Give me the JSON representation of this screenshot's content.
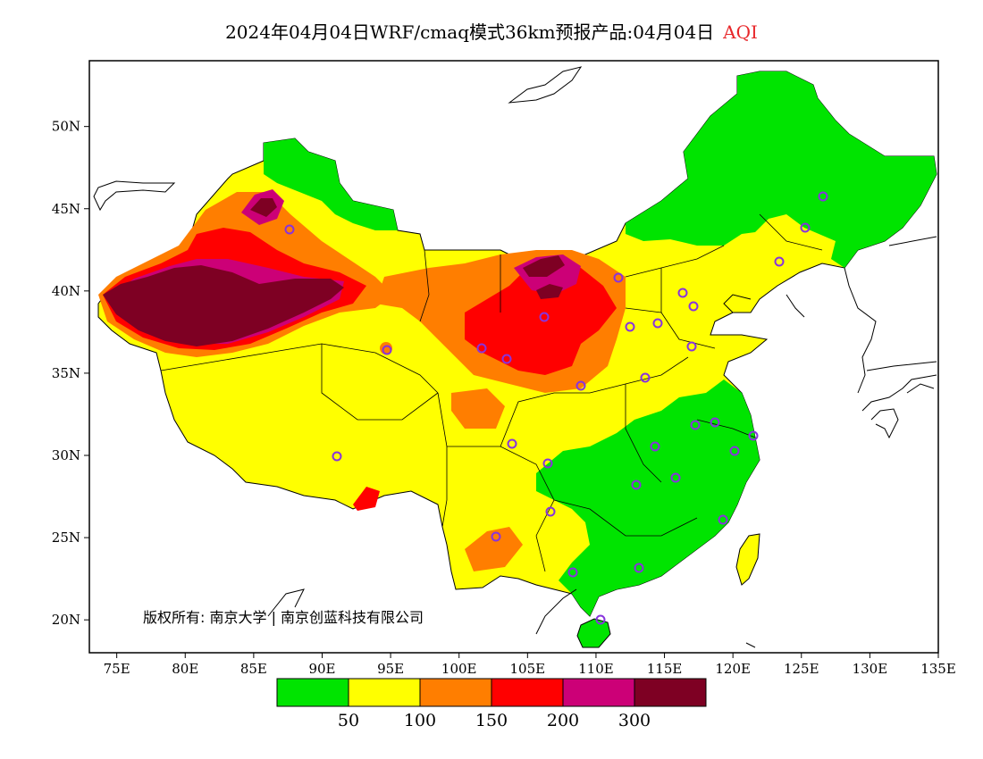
{
  "title": {
    "main": "2024年04月04日WRF/cmaq模式36km预报产品:04月04日",
    "variable": "AQI"
  },
  "map": {
    "lon_range": [
      73,
      135
    ],
    "lat_range": [
      18,
      54
    ],
    "lat_ticks": [
      {
        "value": 50,
        "label": "50N"
      },
      {
        "value": 45,
        "label": "45N"
      },
      {
        "value": 40,
        "label": "40N"
      },
      {
        "value": 35,
        "label": "35N"
      },
      {
        "value": 30,
        "label": "30N"
      },
      {
        "value": 25,
        "label": "25N"
      },
      {
        "value": 20,
        "label": "20N"
      }
    ],
    "lon_ticks": [
      {
        "value": 75,
        "label": "75E"
      },
      {
        "value": 80,
        "label": "80E"
      },
      {
        "value": 85,
        "label": "85E"
      },
      {
        "value": 90,
        "label": "90E"
      },
      {
        "value": 95,
        "label": "95E"
      },
      {
        "value": 100,
        "label": "100E"
      },
      {
        "value": 105,
        "label": "105E"
      },
      {
        "value": 110,
        "label": "110E"
      },
      {
        "value": 115,
        "label": "115E"
      },
      {
        "value": 120,
        "label": "120E"
      },
      {
        "value": 125,
        "label": "125E"
      },
      {
        "value": 130,
        "label": "130E"
      },
      {
        "value": 135,
        "label": "135E"
      }
    ],
    "copyright": "版权所有: 南京大学 | 南京创蓝科技有限公司"
  },
  "legend": {
    "colors": [
      "#00e400",
      "#ffff00",
      "#ff7e00",
      "#ff0000",
      "#cc0077",
      "#7e0023"
    ],
    "labels": [
      "50",
      "100",
      "150",
      "200",
      "300"
    ]
  },
  "colors": {
    "good": "#00e400",
    "moderate": "#ffff00",
    "sensitive": "#ff7e00",
    "unhealthy": "#ff0000",
    "very_unhealthy": "#cc0077",
    "hazardous": "#7e0023",
    "city_marker": "#8833dd"
  }
}
